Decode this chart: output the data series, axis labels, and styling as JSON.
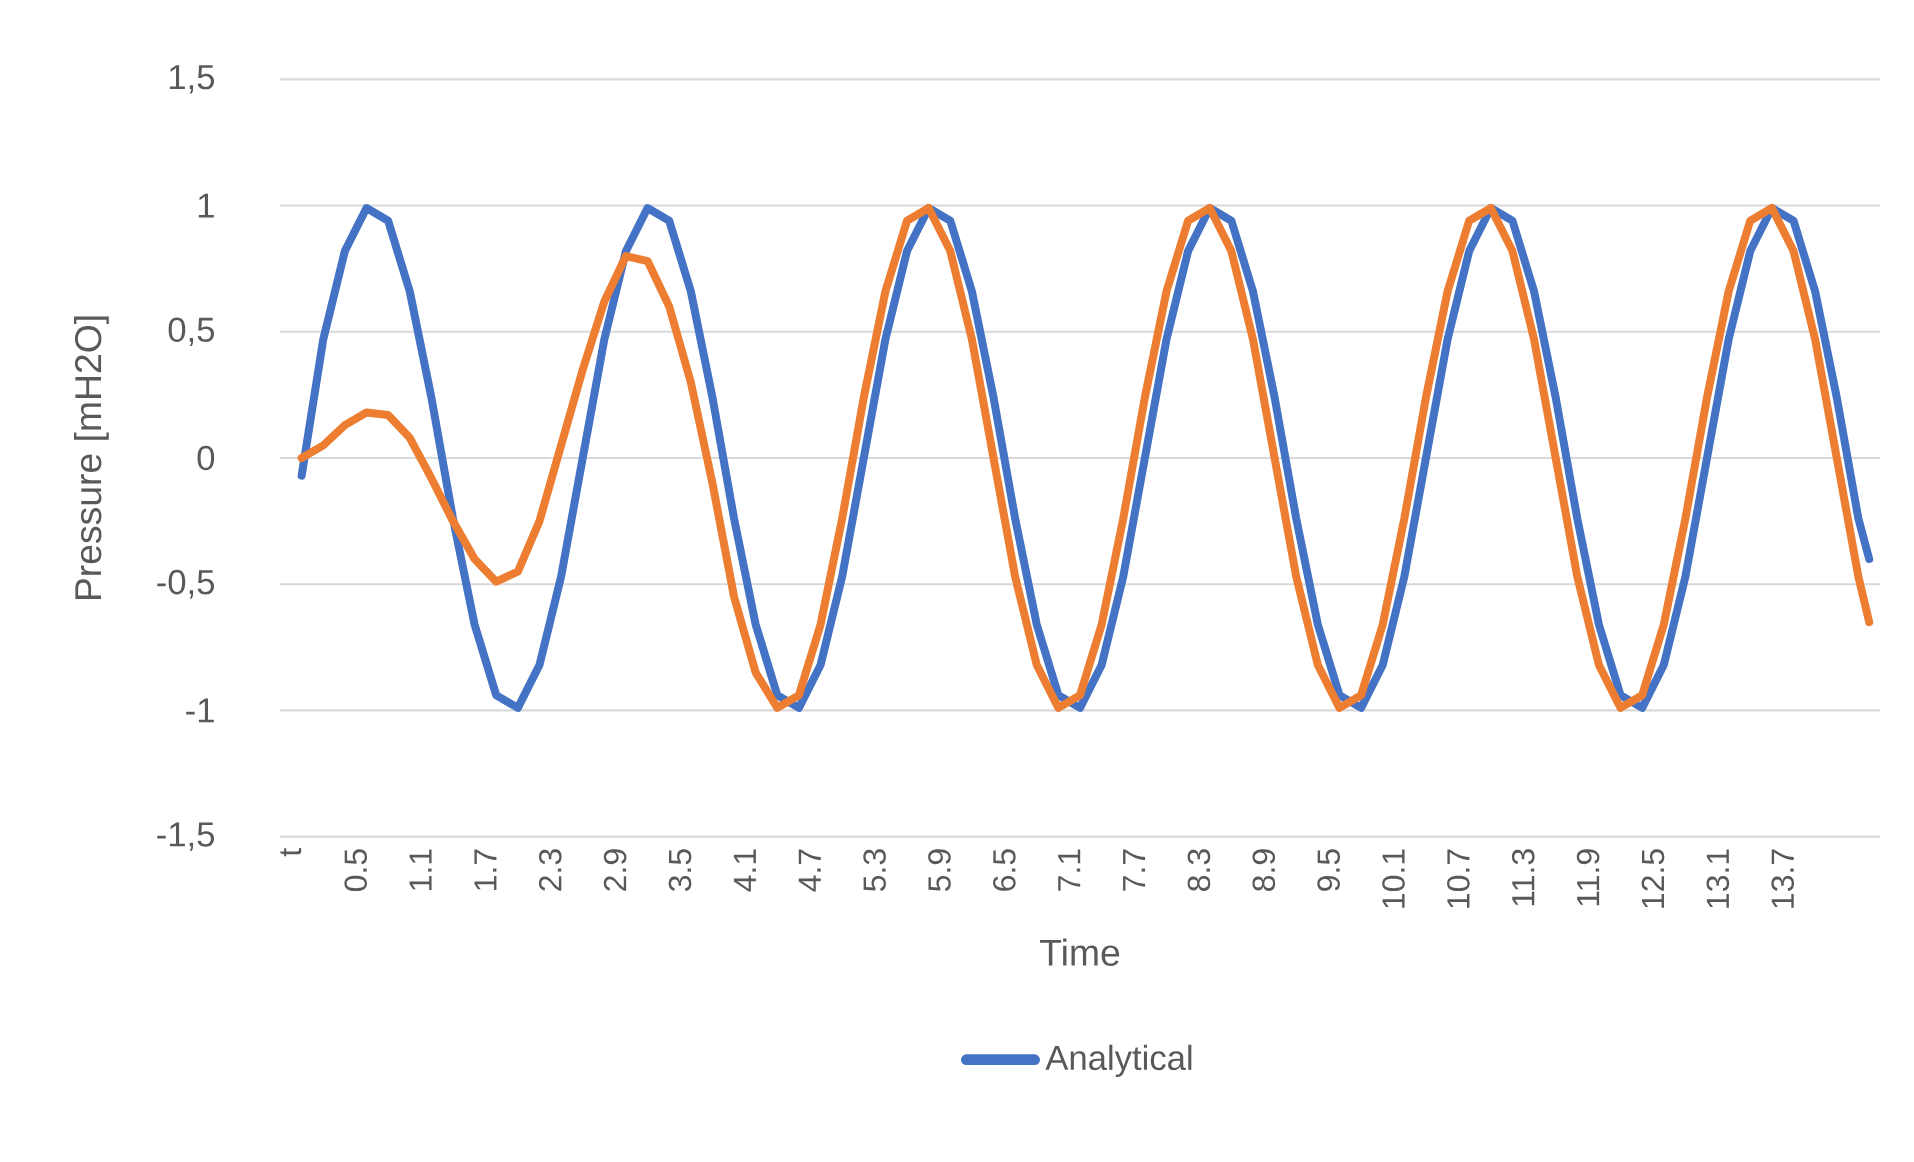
{
  "chart_data": {
    "type": "line",
    "xlabel": "Time",
    "ylabel": "Pressure [mH2O]",
    "x": [
      0,
      0.2,
      0.4,
      0.6,
      0.8,
      1,
      1.2,
      1.4,
      1.6,
      1.8,
      2,
      2.2,
      2.4,
      2.6,
      2.8,
      3,
      3.2,
      3.4,
      3.6,
      3.8,
      4,
      4.2,
      4.4,
      4.6,
      4.8,
      5,
      5.2,
      5.4,
      5.6,
      5.8,
      6,
      6.2,
      6.4,
      6.6,
      6.8,
      7,
      7.2,
      7.4,
      7.6,
      7.8,
      8,
      8.2,
      8.4,
      8.6,
      8.8,
      9,
      9.2,
      9.4,
      9.6,
      9.8,
      10,
      10.2,
      10.4,
      10.6,
      10.8,
      11,
      11.2,
      11.4,
      11.6,
      11.8,
      12,
      12.2,
      12.4,
      12.6,
      12.8,
      13,
      13.2,
      13.4,
      13.6,
      13.8,
      14,
      14.2,
      14.4,
      14.5
    ],
    "series": [
      {
        "name": "Analytical",
        "color": "#4472c4",
        "values": [
          -0.07,
          0.47,
          0.82,
          0.99,
          0.94,
          0.66,
          0.24,
          -0.24,
          -0.66,
          -0.94,
          -0.99,
          -0.82,
          -0.47,
          0,
          0.47,
          0.82,
          0.99,
          0.94,
          0.66,
          0.24,
          -0.24,
          -0.66,
          -0.94,
          -0.99,
          -0.82,
          -0.47,
          0,
          0.47,
          0.82,
          0.99,
          0.94,
          0.66,
          0.24,
          -0.24,
          -0.66,
          -0.94,
          -0.99,
          -0.82,
          -0.47,
          0,
          0.47,
          0.82,
          0.99,
          0.94,
          0.66,
          0.24,
          -0.24,
          -0.66,
          -0.94,
          -0.99,
          -0.82,
          -0.47,
          0,
          0.47,
          0.82,
          0.99,
          0.94,
          0.66,
          0.24,
          -0.24,
          -0.66,
          -0.94,
          -0.99,
          -0.82,
          -0.47,
          0,
          0.47,
          0.82,
          0.99,
          0.94,
          0.66,
          0.24,
          -0.24,
          -0.4
        ]
      },
      {
        "color": "#ed7d31",
        "values": [
          0,
          0.05,
          0.13,
          0.18,
          0.17,
          0.08,
          -0.08,
          -0.25,
          -0.4,
          -0.49,
          -0.45,
          -0.25,
          0.05,
          0.35,
          0.62,
          0.8,
          0.78,
          0.6,
          0.3,
          -0.1,
          -0.55,
          -0.85,
          -0.99,
          -0.94,
          -0.66,
          -0.24,
          0.24,
          0.66,
          0.94,
          0.99,
          0.82,
          0.47,
          0,
          -0.47,
          -0.82,
          -0.99,
          -0.94,
          -0.66,
          -0.24,
          0.24,
          0.66,
          0.94,
          0.99,
          0.82,
          0.47,
          0,
          -0.47,
          -0.82,
          -0.99,
          -0.94,
          -0.66,
          -0.24,
          0.24,
          0.66,
          0.94,
          0.99,
          0.82,
          0.47,
          0,
          -0.47,
          -0.82,
          -0.99,
          -0.94,
          -0.66,
          -0.24,
          0.24,
          0.66,
          0.94,
          0.99,
          0.82,
          0.47,
          0,
          -0.47,
          -0.65
        ]
      }
    ],
    "xlim": [
      -0.2,
      14.6
    ],
    "xticks": [
      {
        "value": -0.1,
        "label": "t"
      },
      0.5,
      1.1,
      1.7,
      2.3,
      2.9,
      3.5,
      4.1,
      4.7,
      5.3,
      5.9,
      6.5,
      7.1,
      7.7,
      8.3,
      8.9,
      9.5,
      10.1,
      10.7,
      11.3,
      11.9,
      12.5,
      13.1,
      13.7
    ],
    "ylim": [
      -1.5,
      1.5
    ],
    "yticks": [
      {
        "value": -1.5,
        "label": "-1,5"
      },
      {
        "value": -1,
        "label": "-1"
      },
      {
        "value": -0.5,
        "label": "-0,5"
      },
      {
        "value": 0,
        "label": "0"
      },
      {
        "value": 0.5,
        "label": "0,5"
      },
      {
        "value": 1,
        "label": "1"
      },
      {
        "value": 1.5,
        "label": "1,5"
      }
    ],
    "grid": "y",
    "legend": "bottom",
    "marker": "none",
    "line_style": "solid"
  }
}
